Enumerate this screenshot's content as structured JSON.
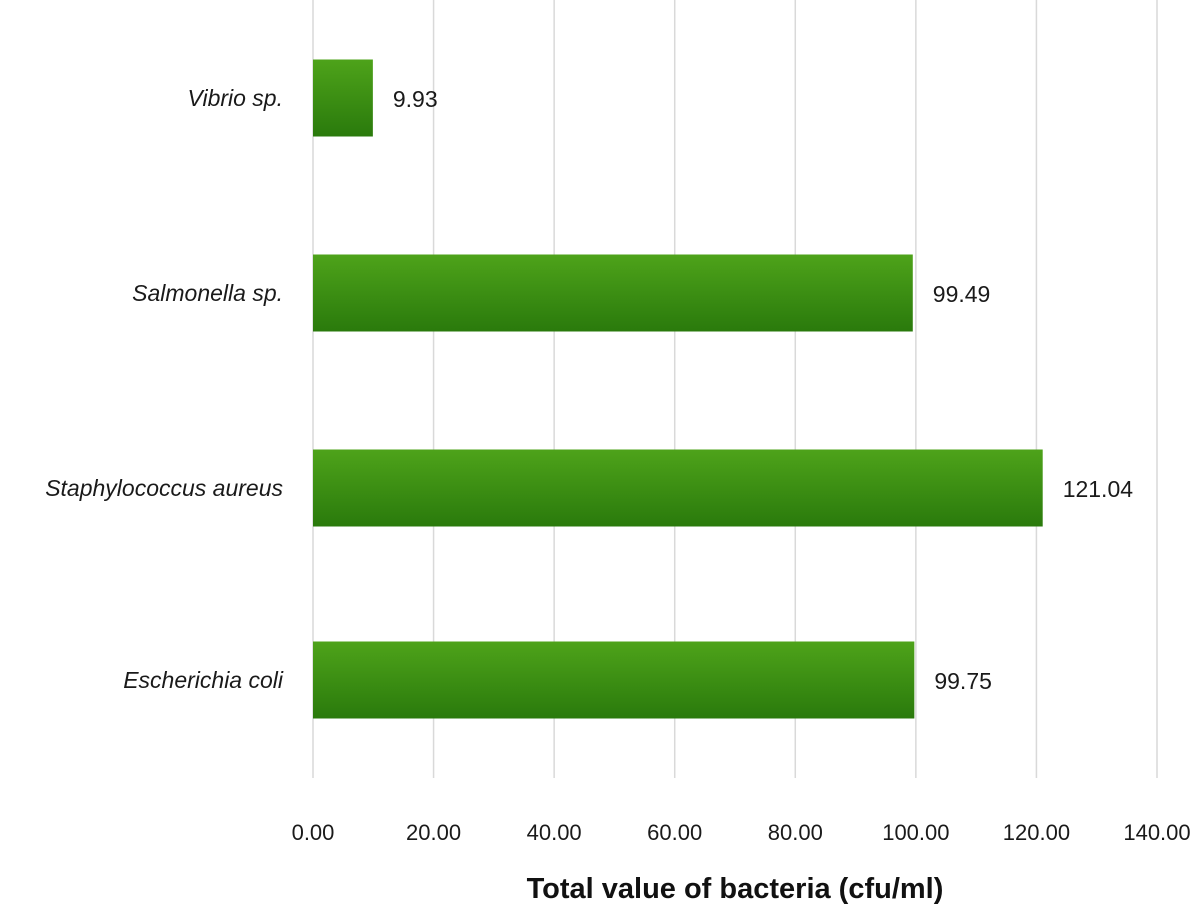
{
  "chart_data": {
    "type": "bar",
    "orientation": "horizontal",
    "categories": [
      "Vibrio sp.",
      "Salmonella sp.",
      "Staphylococcus aureus",
      "Escherichia coli"
    ],
    "values": [
      9.93,
      99.49,
      121.04,
      99.75
    ],
    "value_labels": [
      "9.93",
      "99.49",
      "121.04",
      "99.75"
    ],
    "xlabel": "Total value of bacteria (cfu/ml)",
    "ylabel": "",
    "title": "",
    "xlim": [
      0,
      140
    ],
    "xticks": [
      0,
      20,
      40,
      60,
      80,
      100,
      120,
      140
    ],
    "xtick_labels": [
      "0.00",
      "20.00",
      "40.00",
      "60.00",
      "80.00",
      "100.00",
      "120.00",
      "140.00"
    ],
    "grid": "vertical",
    "legend": "none",
    "bar_color_top": "#4ea31a",
    "bar_color_bottom": "#2a7a0c",
    "grid_color": "#d9d9d9"
  }
}
